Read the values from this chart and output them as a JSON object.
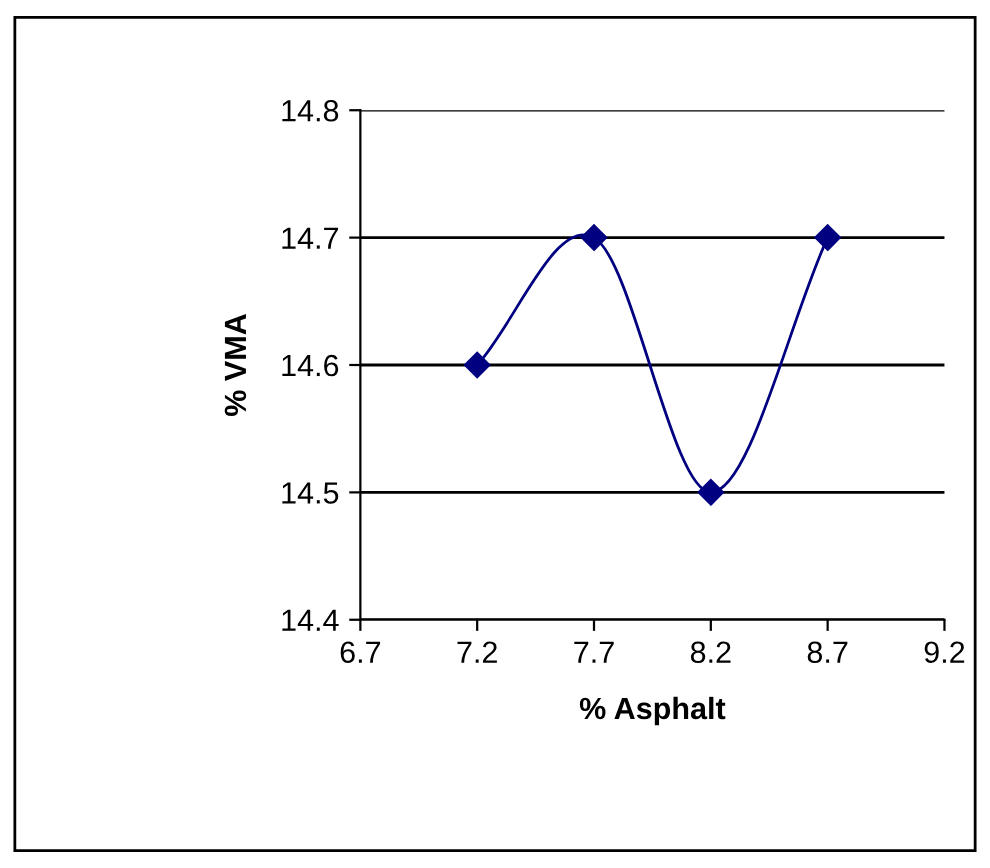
{
  "chart_data": {
    "type": "line",
    "xlabel": "% Asphalt",
    "ylabel": "% VMA",
    "x": [
      7.2,
      7.7,
      8.2,
      8.7
    ],
    "series": [
      {
        "color": "#000080",
        "values": [
          14.6,
          14.7,
          14.5,
          14.7
        ]
      }
    ],
    "xlim": [
      6.7,
      9.2
    ],
    "xticks": [
      6.7,
      7.2,
      7.7,
      8.2,
      8.7,
      9.2
    ],
    "ylim": [
      14.4,
      14.8
    ],
    "yticks": [
      14.4,
      14.5,
      14.6,
      14.7,
      14.8
    ],
    "grid": "y",
    "marker": "diamond",
    "line_style": "solid",
    "legend": false
  }
}
